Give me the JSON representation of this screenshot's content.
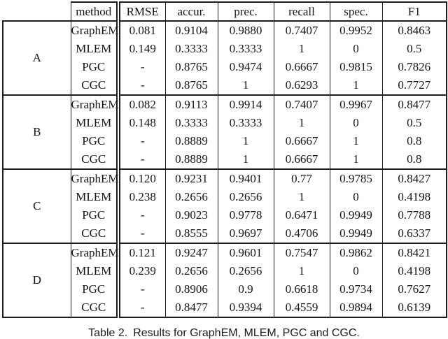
{
  "table": {
    "columns": [
      "method",
      "RMSE",
      "accur.",
      "prec.",
      "recall",
      "spec.",
      "F1"
    ],
    "groups": [
      {
        "label": "A",
        "rows": [
          {
            "method": "GraphEM",
            "values": [
              "0.081",
              "0.9104",
              "0.9880",
              "0.7407",
              "0.9952",
              "0.8463"
            ]
          },
          {
            "method": "MLEM",
            "values": [
              "0.149",
              "0.3333",
              "0.3333",
              "1",
              "0",
              "0.5"
            ]
          },
          {
            "method": "PGC",
            "values": [
              "-",
              "0.8765",
              "0.9474",
              "0.6667",
              "0.9815",
              "0.7826"
            ]
          },
          {
            "method": "CGC",
            "values": [
              "-",
              "0.8765",
              "1",
              "0.6293",
              "1",
              "0.7727"
            ]
          }
        ]
      },
      {
        "label": "B",
        "rows": [
          {
            "method": "GraphEM",
            "values": [
              "0.082",
              "0.9113",
              "0.9914",
              "0.7407",
              "0.9967",
              "0.8477"
            ]
          },
          {
            "method": "MLEM",
            "values": [
              "0.148",
              "0.3333",
              "0.3333",
              "1",
              "0",
              "0.5"
            ]
          },
          {
            "method": "PGC",
            "values": [
              "-",
              "0.8889",
              "1",
              "0.6667",
              "1",
              "0.8"
            ]
          },
          {
            "method": "CGC",
            "values": [
              "-",
              "0.8889",
              "1",
              "0.6667",
              "1",
              "0.8"
            ]
          }
        ]
      },
      {
        "label": "C",
        "rows": [
          {
            "method": "GraphEM",
            "values": [
              "0.120",
              "0.9231",
              "0.9401",
              "0.77",
              "0.9785",
              "0.8427"
            ]
          },
          {
            "method": "MLEM",
            "values": [
              "0.238",
              "0.2656",
              "0.2656",
              "1",
              "0",
              "0.4198"
            ]
          },
          {
            "method": "PGC",
            "values": [
              "-",
              "0.9023",
              "0.9778",
              "0.6471",
              "0.9949",
              "0.7788"
            ]
          },
          {
            "method": "CGC",
            "values": [
              "-",
              "0.8555",
              "0.9697",
              "0.4706",
              "0.9949",
              "0.6337"
            ]
          }
        ]
      },
      {
        "label": "D",
        "rows": [
          {
            "method": "GraphEM",
            "values": [
              "0.121",
              "0.9247",
              "0.9601",
              "0.7547",
              "0.9862",
              "0.8421"
            ]
          },
          {
            "method": "MLEM",
            "values": [
              "0.239",
              "0.2656",
              "0.2656",
              "1",
              "0",
              "0.4198"
            ]
          },
          {
            "method": "PGC",
            "values": [
              "-",
              "0.8906",
              "0.9",
              "0.6618",
              "0.9734",
              "0.7627"
            ]
          },
          {
            "method": "CGC",
            "values": [
              "-",
              "0.8477",
              "0.9394",
              "0.4559",
              "0.9894",
              "0.6139"
            ]
          }
        ]
      }
    ]
  },
  "caption": {
    "label": "Table 2.",
    "text": "Results for GraphEM, MLEM, PGC and CGC."
  }
}
